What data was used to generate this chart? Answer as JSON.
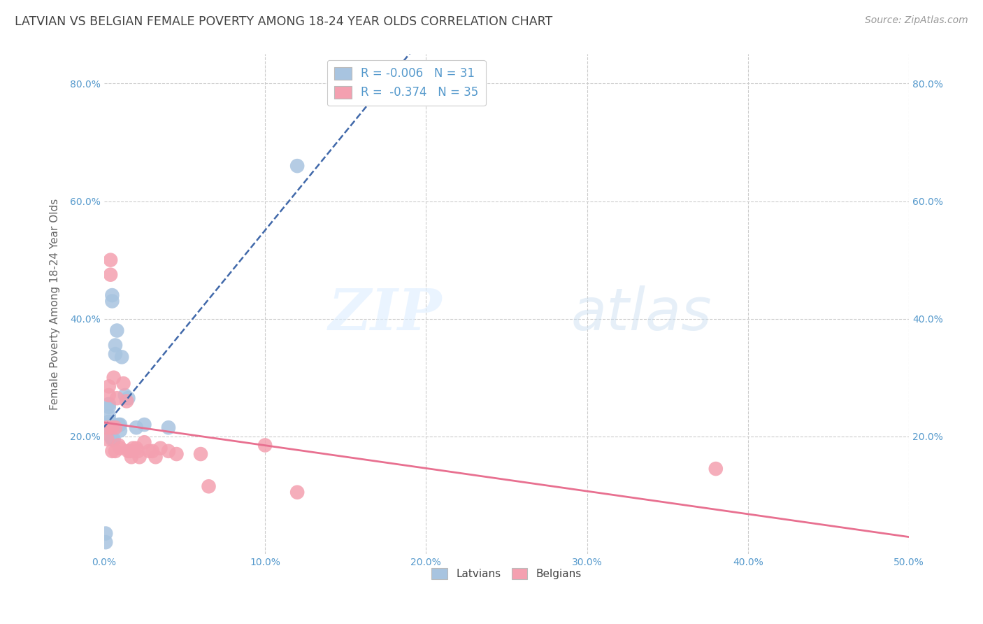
{
  "title": "LATVIAN VS BELGIAN FEMALE POVERTY AMONG 18-24 YEAR OLDS CORRELATION CHART",
  "source": "Source: ZipAtlas.com",
  "ylabel": "Female Poverty Among 18-24 Year Olds",
  "xlim": [
    0.0,
    0.5
  ],
  "ylim": [
    0.0,
    0.85
  ],
  "xticks": [
    0.0,
    0.1,
    0.2,
    0.3,
    0.4,
    0.5
  ],
  "xticklabels": [
    "0.0%",
    "10.0%",
    "20.0%",
    "30.0%",
    "40.0%",
    "50.0%"
  ],
  "yticks": [
    0.0,
    0.2,
    0.4,
    0.6,
    0.8
  ],
  "yticklabels": [
    "",
    "20.0%",
    "40.0%",
    "60.0%",
    "80.0%"
  ],
  "latvian_color": "#a8c4e0",
  "belgian_color": "#f4a0b0",
  "latvian_line_color": "#4169aa",
  "belgian_line_color": "#e87090",
  "legend_latvian_label": "R = -0.006   N = 31",
  "legend_belgian_label": "R =  -0.374   N = 35",
  "latvian_x": [
    0.001,
    0.001,
    0.002,
    0.002,
    0.003,
    0.003,
    0.003,
    0.003,
    0.004,
    0.004,
    0.004,
    0.004,
    0.005,
    0.005,
    0.005,
    0.005,
    0.006,
    0.006,
    0.007,
    0.007,
    0.008,
    0.009,
    0.01,
    0.01,
    0.011,
    0.013,
    0.015,
    0.02,
    0.025,
    0.04,
    0.12
  ],
  "latvian_y": [
    0.035,
    0.02,
    0.22,
    0.215,
    0.255,
    0.25,
    0.235,
    0.225,
    0.22,
    0.215,
    0.21,
    0.2,
    0.44,
    0.43,
    0.215,
    0.195,
    0.22,
    0.195,
    0.355,
    0.34,
    0.38,
    0.22,
    0.22,
    0.21,
    0.335,
    0.27,
    0.265,
    0.215,
    0.22,
    0.215,
    0.66
  ],
  "belgian_x": [
    0.002,
    0.002,
    0.003,
    0.003,
    0.004,
    0.004,
    0.005,
    0.005,
    0.006,
    0.007,
    0.007,
    0.008,
    0.009,
    0.01,
    0.012,
    0.014,
    0.015,
    0.016,
    0.017,
    0.018,
    0.02,
    0.021,
    0.022,
    0.025,
    0.028,
    0.03,
    0.032,
    0.035,
    0.04,
    0.045,
    0.06,
    0.065,
    0.1,
    0.12,
    0.38
  ],
  "belgian_y": [
    0.215,
    0.195,
    0.285,
    0.27,
    0.5,
    0.475,
    0.215,
    0.175,
    0.3,
    0.215,
    0.175,
    0.265,
    0.185,
    0.18,
    0.29,
    0.26,
    0.175,
    0.175,
    0.165,
    0.18,
    0.18,
    0.175,
    0.165,
    0.19,
    0.175,
    0.175,
    0.165,
    0.18,
    0.175,
    0.17,
    0.17,
    0.115,
    0.185,
    0.105,
    0.145
  ],
  "watermark_zip": "ZIP",
  "watermark_atlas": "atlas",
  "background_color": "#ffffff",
  "grid_color": "#cccccc",
  "tick_label_color": "#5599cc",
  "title_color": "#444444",
  "axis_label_color": "#666666"
}
